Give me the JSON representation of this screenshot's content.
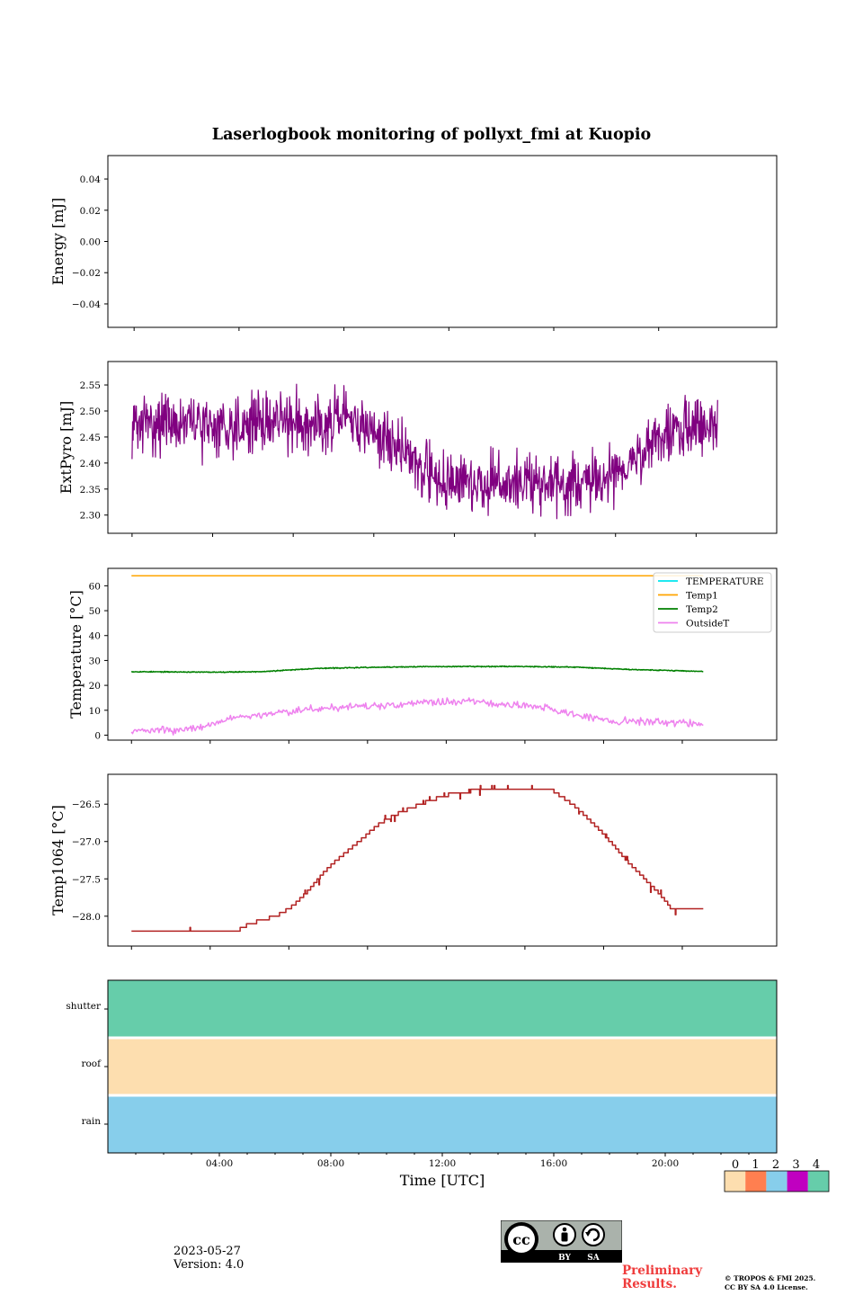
{
  "title": "Laserlogbook monitoring of pollyxt_fmi at Kuopio",
  "date": "2023-05-27",
  "version": "Version: 4.0",
  "preliminary": "Preliminary Results.",
  "copyright": {
    "line1": "© TROPOS & FMI 2025.",
    "line2": "CC BY SA 4.0 License."
  },
  "license_badge": {
    "cc": "cc",
    "by": "BY",
    "sa": "SA"
  },
  "chart_data": [
    {
      "type": "line",
      "name": "energy",
      "ylabel": "Energy [mJ]",
      "ylim": [
        -0.055,
        0.055
      ],
      "yticks": [
        0.04,
        0.02,
        0.0,
        -0.02,
        -0.04
      ],
      "yticklabels": [
        "0.04",
        "0.02",
        "0.00",
        "−0.02",
        "−0.04"
      ],
      "series": []
    },
    {
      "type": "line",
      "name": "extpyro",
      "ylabel": "ExtPyro [mJ]",
      "ylim": [
        2.265,
        2.595
      ],
      "yticks": [
        2.55,
        2.5,
        2.45,
        2.4,
        2.35,
        2.3
      ],
      "yticklabels": [
        "2.55",
        "2.50",
        "2.45",
        "2.40",
        "2.35",
        "2.30"
      ],
      "series": [
        {
          "name": "ExtPyro",
          "color": "#800080",
          "noise": 0.035,
          "x": [
            1.0,
            2.0,
            4.0,
            6.0,
            8.0,
            9.0,
            10.0,
            11.0,
            12.0,
            13.0,
            14.0,
            15.0,
            16.0,
            17.0,
            18.0,
            19.0,
            20.0,
            21.0,
            22.0,
            22.8
          ],
          "y": [
            2.47,
            2.48,
            2.47,
            2.48,
            2.48,
            2.48,
            2.46,
            2.43,
            2.38,
            2.36,
            2.36,
            2.36,
            2.36,
            2.36,
            2.36,
            2.38,
            2.42,
            2.46,
            2.47,
            2.47
          ]
        }
      ]
    },
    {
      "type": "line",
      "name": "temperature",
      "ylabel": "Temperature [°C]",
      "ylim": [
        -2,
        67
      ],
      "yticks": [
        60,
        50,
        40,
        30,
        20,
        10,
        0
      ],
      "yticklabels": [
        "60",
        "50",
        "40",
        "30",
        "20",
        "10",
        "0"
      ],
      "legend": {
        "placement": "top-right"
      },
      "series": [
        {
          "name": "TEMPERATURE",
          "color": "#00e5ee",
          "x": [],
          "y": []
        },
        {
          "name": "Temp1",
          "color": "#ffa500",
          "noise": 0,
          "x": [
            1.0,
            22.8
          ],
          "y": [
            64,
            64
          ]
        },
        {
          "name": "Temp2",
          "color": "#008000",
          "noise": 0.12,
          "x": [
            1.0,
            4.0,
            6.0,
            8.0,
            10.0,
            12.0,
            14.0,
            16.0,
            18.0,
            20.0,
            22.8
          ],
          "y": [
            25.5,
            25.3,
            25.5,
            26.8,
            27.2,
            27.5,
            27.6,
            27.6,
            27.3,
            26.4,
            25.6
          ]
        },
        {
          "name": "OutsideT",
          "color": "#ee82ee",
          "noise": 0.9,
          "x": [
            1.0,
            2.5,
            3.2,
            4.2,
            5.0,
            7.0,
            9.0,
            11.0,
            12.0,
            13.0,
            14.0,
            15.5,
            17.0,
            18.5,
            19.5,
            21.0,
            22.8
          ],
          "y": [
            2.0,
            1.8,
            2.5,
            4.5,
            7.5,
            9.5,
            11.5,
            12.0,
            13.0,
            13.5,
            13.5,
            12.5,
            10.5,
            7.0,
            5.7,
            5.4,
            4.7
          ]
        }
      ]
    },
    {
      "type": "line",
      "name": "temp1064",
      "ylabel": "Temp1064 [°C]",
      "ylim": [
        -28.4,
        -26.1
      ],
      "yticks": [
        -26.5,
        -27.0,
        -27.5,
        -28.0
      ],
      "yticklabels": [
        "−26.5",
        "−27.0",
        "−27.5",
        "−28.0"
      ],
      "series": [
        {
          "name": "Temp1064",
          "color": "#b22222",
          "x": [
            1.0,
            4.0,
            5.0,
            5.5,
            6.0,
            6.5,
            7.0,
            7.5,
            8.0,
            8.5,
            9.0,
            9.5,
            10.0,
            10.5,
            11.0,
            12.0,
            13.0,
            14.0,
            15.0,
            16.0,
            17.0,
            18.0,
            19.0,
            20.0,
            21.0,
            21.6,
            22.8
          ],
          "y": [
            -28.2,
            -28.2,
            -28.2,
            -28.1,
            -28.05,
            -28.0,
            -27.9,
            -27.75,
            -27.55,
            -27.35,
            -27.2,
            -27.05,
            -26.9,
            -26.75,
            -26.65,
            -26.5,
            -26.38,
            -26.32,
            -26.3,
            -26.3,
            -26.3,
            -26.55,
            -26.9,
            -27.3,
            -27.65,
            -27.9,
            -27.9
          ]
        }
      ]
    },
    {
      "type": "heatmap",
      "name": "status",
      "rows": [
        "shutter",
        "roof",
        "rain"
      ],
      "values": [
        4,
        0,
        2
      ],
      "xlabel": "Time [UTC]",
      "xlim": [
        0,
        24
      ],
      "xticks": [
        4,
        8,
        12,
        16,
        20
      ],
      "xticklabels": [
        "04:00",
        "08:00",
        "12:00",
        "16:00",
        "20:00"
      ],
      "colorbar": {
        "ticks": [
          "0",
          "1",
          "2",
          "3",
          "4"
        ],
        "colors": [
          "#fddeaf",
          "#ff7f50",
          "#87ceeb",
          "#c000c0",
          "#66cdaa"
        ]
      }
    }
  ]
}
